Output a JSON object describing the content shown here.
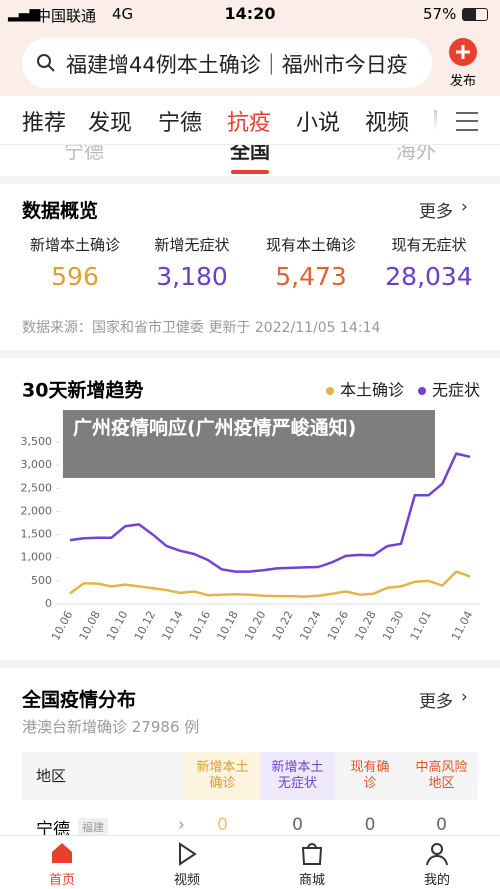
{
  "status_bar": {
    "carrier": "中国联通",
    "network": "4G",
    "time": "14:20",
    "battery": "57%"
  },
  "search": {
    "query": "福建增44例本土确诊｜福州市今日疫",
    "publish": "发布"
  },
  "tabs": [
    "推荐",
    "发现",
    "宁德",
    "抗疫",
    "小说",
    "视频"
  ],
  "sub_tabs": [
    "宁德",
    "全国",
    "海外"
  ],
  "overview": {
    "title": "数据概览",
    "more": "更多",
    "stats": [
      {
        "label": "新增本土确诊",
        "value": "596"
      },
      {
        "label": "新增无症状",
        "value": "3,180"
      },
      {
        "label": "现有本土确诊",
        "value": "5,473"
      },
      {
        "label": "现有无症状",
        "value": "28,034"
      }
    ],
    "source": "数据来源：国家和省市卫健委 更新于 2022/11/05 14:14"
  },
  "chart_data": {
    "type": "line",
    "title": "30天新增趋势",
    "categories": [
      "10.06",
      null,
      "10.08",
      null,
      "10.10",
      null,
      "10.12",
      null,
      "10.14",
      null,
      "10.16",
      null,
      "10.18",
      null,
      "10.20",
      null,
      "10.22",
      null,
      "10.24",
      null,
      "10.26",
      null,
      "10.28",
      null,
      "10.30",
      null,
      "11.01",
      null,
      null,
      "11.04"
    ],
    "series": [
      {
        "name": "本土确诊",
        "color": "#e3b446",
        "values": [
          230,
          450,
          440,
          380,
          420,
          380,
          340,
          300,
          240,
          270,
          190,
          200,
          210,
          200,
          180,
          170,
          170,
          160,
          180,
          220,
          270,
          200,
          220,
          350,
          380,
          480,
          500,
          400,
          700,
          596
        ]
      },
      {
        "name": "无症状",
        "color": "#7241d6",
        "values": [
          1380,
          1420,
          1430,
          1430,
          1680,
          1720,
          1500,
          1250,
          1150,
          1080,
          950,
          750,
          700,
          700,
          730,
          770,
          780,
          790,
          800,
          900,
          1040,
          1060,
          1050,
          1250,
          1300,
          2350,
          2350,
          2600,
          3250,
          3180
        ]
      }
    ],
    "ylim": [
      0,
      3500
    ],
    "yticks": [
      0,
      500,
      {
        "value": 1000,
        "label": "1,000"
      },
      {
        "value": 1500,
        "label": "1,500"
      },
      {
        "value": 2000,
        "label": "2,000"
      },
      {
        "value": 2500,
        "label": "2,500"
      },
      {
        "value": 3000,
        "label": "3,000"
      },
      {
        "value": 3500,
        "label": "3,500"
      }
    ],
    "grid": false,
    "legend": "top-right"
  },
  "overlay_title": "广州疫情响应(广州疫情严峻通知)",
  "distribution": {
    "title": "全国疫情分布",
    "more": "更多",
    "subtitle": "港澳台新增确诊 27986 例",
    "table": {
      "header": [
        "地区",
        "新增本土确诊",
        "新增本土无症状",
        "现有确诊",
        "中高风险地区"
      ],
      "rows": [
        [
          "宁德",
          "福建",
          "0",
          "0",
          "0",
          "0"
        ]
      ]
    }
  },
  "nav": [
    "首页",
    "视频",
    "商城",
    "我的"
  ]
}
